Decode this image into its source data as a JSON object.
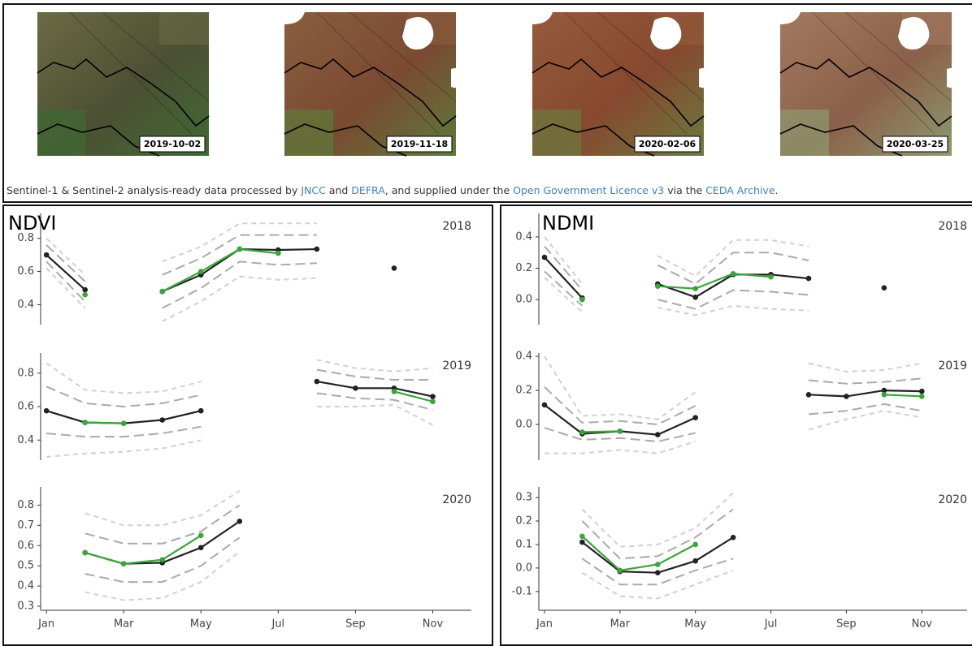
{
  "images": [
    {
      "date": "2019-10-02"
    },
    {
      "date": "2019-11-18"
    },
    {
      "date": "2020-02-06"
    },
    {
      "date": "2020-03-25"
    }
  ],
  "credit": [
    "Sentinel-1 & Sentinel-2 analysis-ready data processed by ",
    "JNCC",
    " and ",
    "DEFRA",
    ", and supplied under the ",
    "Open Government Licence v3",
    " via the ",
    "CEDA Archive",
    "."
  ],
  "chart_data": [
    {
      "type": "line",
      "title": "NDVI",
      "year": "2018",
      "x": [
        1,
        2,
        3,
        4,
        5,
        6,
        7,
        8,
        9,
        10,
        11
      ],
      "xlim": [
        0.85,
        12
      ],
      "ylim": [
        0.28,
        0.95
      ],
      "yticks": [
        0.4,
        0.6,
        0.8
      ],
      "series": [
        {
          "color": "#d0d0d0",
          "dash": "6,5",
          "values": [
            0.8,
            0.58,
            null,
            0.66,
            0.75,
            0.89,
            0.89,
            0.89,
            null,
            null,
            null
          ]
        },
        {
          "color": "#aaaaaa",
          "dash": "12,6",
          "values": [
            0.76,
            0.54,
            null,
            0.58,
            0.68,
            0.82,
            0.82,
            0.82,
            null,
            null,
            null
          ]
        },
        {
          "color": "#aaaaaa",
          "dash": "12,6",
          "values": [
            0.66,
            0.42,
            null,
            0.38,
            0.5,
            0.66,
            0.64,
            0.65,
            null,
            null,
            null
          ]
        },
        {
          "color": "#d0d0d0",
          "dash": "6,5",
          "values": [
            0.62,
            0.38,
            null,
            0.3,
            0.42,
            0.57,
            0.55,
            0.56,
            null,
            null,
            null
          ]
        },
        {
          "color": "#222222",
          "markers": true,
          "values": [
            0.7,
            0.49,
            null,
            0.48,
            0.58,
            0.735,
            0.73,
            0.735,
            null,
            0.62,
            null
          ]
        },
        {
          "color": "#3aa53a",
          "markers": true,
          "values": [
            null,
            0.46,
            null,
            0.48,
            0.6,
            0.735,
            0.71,
            null,
            null,
            null,
            null
          ]
        }
      ]
    },
    {
      "type": "line",
      "year": "2019",
      "x": [
        1,
        2,
        3,
        4,
        5,
        6,
        7,
        8,
        9,
        10,
        11
      ],
      "xlim": [
        0.85,
        12
      ],
      "ylim": [
        0.28,
        0.92
      ],
      "yticks": [
        0.4,
        0.6,
        0.8
      ],
      "series": [
        {
          "color": "#d0d0d0",
          "dash": "6,5",
          "values": [
            0.86,
            0.7,
            0.68,
            0.69,
            0.75,
            null,
            null,
            0.88,
            0.83,
            0.81,
            0.83
          ]
        },
        {
          "color": "#aaaaaa",
          "dash": "12,6",
          "values": [
            0.72,
            0.62,
            0.6,
            0.62,
            0.67,
            null,
            null,
            0.82,
            0.78,
            0.76,
            0.76
          ]
        },
        {
          "color": "#aaaaaa",
          "dash": "12,6",
          "values": [
            0.44,
            0.42,
            0.42,
            0.44,
            0.48,
            null,
            null,
            0.68,
            0.65,
            0.64,
            0.58
          ]
        },
        {
          "color": "#d0d0d0",
          "dash": "6,5",
          "values": [
            0.3,
            0.32,
            0.33,
            0.35,
            0.4,
            null,
            null,
            0.6,
            0.6,
            0.61,
            0.49
          ]
        },
        {
          "color": "#222222",
          "markers": true,
          "values": [
            0.575,
            0.505,
            0.5,
            0.52,
            0.575,
            null,
            null,
            0.75,
            0.71,
            0.71,
            0.66
          ]
        },
        {
          "color": "#3aa53a",
          "markers": true,
          "values": [
            null,
            0.505,
            0.5,
            null,
            null,
            null,
            null,
            null,
            null,
            0.69,
            0.63
          ]
        }
      ]
    },
    {
      "type": "line",
      "year": "2020",
      "x": [
        1,
        2,
        3,
        4,
        5,
        6,
        7,
        8,
        9,
        10,
        11
      ],
      "xlim": [
        0.85,
        12
      ],
      "ylim": [
        0.28,
        0.89
      ],
      "yticks": [
        0.3,
        0.4,
        0.5,
        0.6,
        0.7,
        0.8
      ],
      "xticks": [
        {
          "value": 1,
          "label": "Jan"
        },
        {
          "value": 3,
          "label": "Mar"
        },
        {
          "value": 5,
          "label": "May"
        },
        {
          "value": 7,
          "label": "Jul"
        },
        {
          "value": 9,
          "label": "Sep"
        },
        {
          "value": 11,
          "label": "Nov"
        }
      ],
      "series": [
        {
          "color": "#d0d0d0",
          "dash": "6,5",
          "values": [
            null,
            0.76,
            0.7,
            0.7,
            0.75,
            0.87,
            null,
            null,
            null,
            null,
            null
          ]
        },
        {
          "color": "#aaaaaa",
          "dash": "12,6",
          "values": [
            null,
            0.66,
            0.61,
            0.61,
            0.67,
            0.8,
            null,
            null,
            null,
            null,
            null
          ]
        },
        {
          "color": "#aaaaaa",
          "dash": "12,6",
          "values": [
            null,
            0.46,
            0.42,
            0.42,
            0.5,
            0.64,
            null,
            null,
            null,
            null,
            null
          ]
        },
        {
          "color": "#d0d0d0",
          "dash": "6,5",
          "values": [
            null,
            0.37,
            0.33,
            0.34,
            0.42,
            0.57,
            null,
            null,
            null,
            null,
            null
          ]
        },
        {
          "color": "#222222",
          "markers": true,
          "values": [
            null,
            0.565,
            0.51,
            0.515,
            0.59,
            0.72,
            null,
            null,
            null,
            null,
            null
          ]
        },
        {
          "color": "#3aa53a",
          "markers": true,
          "values": [
            null,
            0.565,
            0.51,
            0.53,
            0.65,
            null,
            null,
            null,
            null,
            null,
            null
          ]
        }
      ]
    },
    {
      "type": "line",
      "title": "NDMI",
      "year": "2018",
      "x": [
        1,
        2,
        3,
        4,
        5,
        6,
        7,
        8,
        9,
        10,
        11
      ],
      "xlim": [
        0.85,
        12.2
      ],
      "ylim": [
        -0.16,
        0.55
      ],
      "yticks": [
        {
          "value": 0,
          "label": "0.0"
        },
        0.2,
        0.4
      ],
      "series": [
        {
          "color": "#d0d0d0",
          "dash": "6,5",
          "values": [
            0.4,
            0.1,
            null,
            0.28,
            0.15,
            0.38,
            0.38,
            0.34,
            null,
            null,
            null
          ]
        },
        {
          "color": "#aaaaaa",
          "dash": "12,6",
          "values": [
            0.34,
            0.06,
            null,
            0.22,
            0.1,
            0.3,
            0.3,
            0.25,
            null,
            null,
            null
          ]
        },
        {
          "color": "#aaaaaa",
          "dash": "12,6",
          "values": [
            0.18,
            -0.04,
            null,
            0,
            -0.06,
            0.06,
            0.05,
            0.03,
            null,
            null,
            null
          ]
        },
        {
          "color": "#d0d0d0",
          "dash": "6,5",
          "values": [
            0.14,
            -0.08,
            null,
            -0.05,
            -0.1,
            -0.04,
            -0.06,
            -0.07,
            null,
            null,
            null
          ]
        },
        {
          "color": "#222222",
          "markers": true,
          "values": [
            0.27,
            0.01,
            null,
            0.1,
            0.015,
            0.16,
            0.16,
            0.135,
            null,
            0.075,
            null
          ]
        },
        {
          "color": "#3aa53a",
          "markers": true,
          "values": [
            null,
            0,
            null,
            0.085,
            0.07,
            0.165,
            0.145,
            null,
            null,
            null,
            null
          ]
        }
      ]
    },
    {
      "type": "line",
      "year": "2019",
      "x": [
        1,
        2,
        3,
        4,
        5,
        6,
        7,
        8,
        9,
        10,
        11
      ],
      "xlim": [
        0.85,
        12.2
      ],
      "ylim": [
        -0.21,
        0.42
      ],
      "yticks": [
        {
          "value": 0,
          "label": "0.0"
        },
        0.2,
        0.4
      ],
      "series": [
        {
          "color": "#d0d0d0",
          "dash": "6,5",
          "values": [
            0.4,
            0.05,
            0.06,
            0.03,
            0.19,
            null,
            null,
            0.36,
            0.31,
            0.32,
            0.36
          ]
        },
        {
          "color": "#aaaaaa",
          "dash": "12,6",
          "values": [
            0.22,
            0.01,
            0.02,
            0,
            0.11,
            null,
            null,
            0.26,
            0.24,
            0.25,
            0.27
          ]
        },
        {
          "color": "#aaaaaa",
          "dash": "12,6",
          "values": [
            -0.02,
            -0.09,
            -0.08,
            -0.1,
            -0.05,
            null,
            null,
            0.06,
            0.08,
            0.12,
            0.08
          ]
        },
        {
          "color": "#d0d0d0",
          "dash": "6,5",
          "values": [
            -0.17,
            -0.17,
            -0.15,
            -0.17,
            -0.1,
            null,
            null,
            -0.03,
            0.03,
            0.08,
            0.04
          ]
        },
        {
          "color": "#222222",
          "markers": true,
          "values": [
            0.115,
            -0.055,
            -0.04,
            -0.06,
            0.04,
            null,
            null,
            0.175,
            0.165,
            0.2,
            0.195
          ]
        },
        {
          "color": "#3aa53a",
          "markers": true,
          "values": [
            null,
            -0.045,
            -0.04,
            null,
            null,
            null,
            null,
            null,
            null,
            0.175,
            0.165
          ]
        }
      ]
    },
    {
      "type": "line",
      "year": "2020",
      "x": [
        1,
        2,
        3,
        4,
        5,
        6,
        7,
        8,
        9,
        10,
        11
      ],
      "xlim": [
        0.85,
        12.2
      ],
      "ylim": [
        -0.18,
        0.345
      ],
      "yticks": [
        -0.1,
        {
          "value": 0,
          "label": "0.0"
        },
        0.1,
        0.2,
        0.3
      ],
      "xticks": [
        {
          "value": 1,
          "label": "Jan"
        },
        {
          "value": 3,
          "label": "Mar"
        },
        {
          "value": 5,
          "label": "May"
        },
        {
          "value": 7,
          "label": "Jul"
        },
        {
          "value": 9,
          "label": "Sep"
        },
        {
          "value": 11,
          "label": "Nov"
        }
      ],
      "series": [
        {
          "color": "#d0d0d0",
          "dash": "6,5",
          "values": [
            null,
            0.25,
            0.09,
            0.1,
            0.17,
            0.32,
            null,
            null,
            null,
            null,
            null
          ]
        },
        {
          "color": "#aaaaaa",
          "dash": "12,6",
          "values": [
            null,
            0.2,
            0.04,
            0.05,
            0.13,
            0.25,
            null,
            null,
            null,
            null,
            null
          ]
        },
        {
          "color": "#aaaaaa",
          "dash": "12,6",
          "values": [
            null,
            0.04,
            -0.07,
            -0.07,
            -0.01,
            0.04,
            null,
            null,
            null,
            null,
            null
          ]
        },
        {
          "color": "#d0d0d0",
          "dash": "6,5",
          "values": [
            null,
            -0.02,
            -0.12,
            -0.13,
            -0.07,
            -0.01,
            null,
            null,
            null,
            null,
            null
          ]
        },
        {
          "color": "#222222",
          "markers": true,
          "values": [
            null,
            0.11,
            -0.015,
            -0.02,
            0.03,
            0.13,
            null,
            null,
            null,
            null,
            null
          ]
        },
        {
          "color": "#3aa53a",
          "markers": true,
          "values": [
            null,
            0.135,
            -0.01,
            0.015,
            0.1,
            null,
            null,
            null,
            null,
            null,
            null
          ]
        }
      ]
    }
  ]
}
